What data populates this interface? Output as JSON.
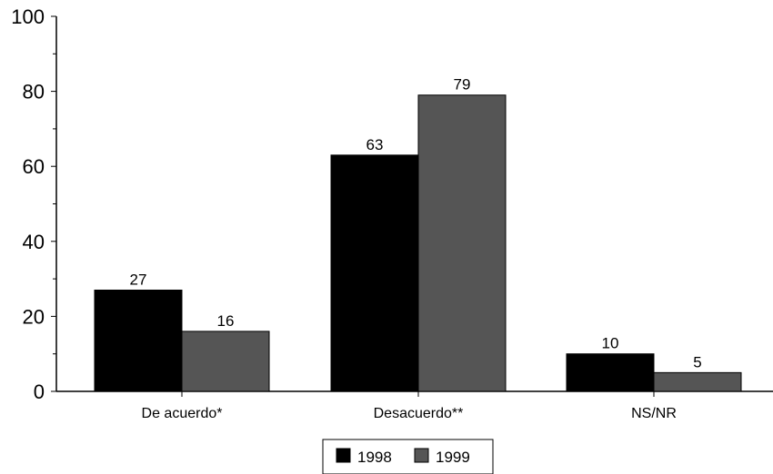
{
  "chart_data": {
    "type": "bar",
    "categories": [
      "De acuerdo*",
      "Desacuerdo**",
      "NS/NR"
    ],
    "series": [
      {
        "name": "1998",
        "values": [
          27,
          63,
          10
        ],
        "color": "#000000"
      },
      {
        "name": "1999",
        "values": [
          16,
          79,
          5
        ],
        "color": "#555555"
      }
    ],
    "data_labels": [
      [
        "27",
        "63",
        "10"
      ],
      [
        "16",
        "79",
        "5"
      ]
    ],
    "yticks": [
      "0",
      "20",
      "40",
      "60",
      "80",
      "100"
    ],
    "ylim": [
      0,
      100
    ],
    "grid": false,
    "legend_position": "bottom-center"
  }
}
